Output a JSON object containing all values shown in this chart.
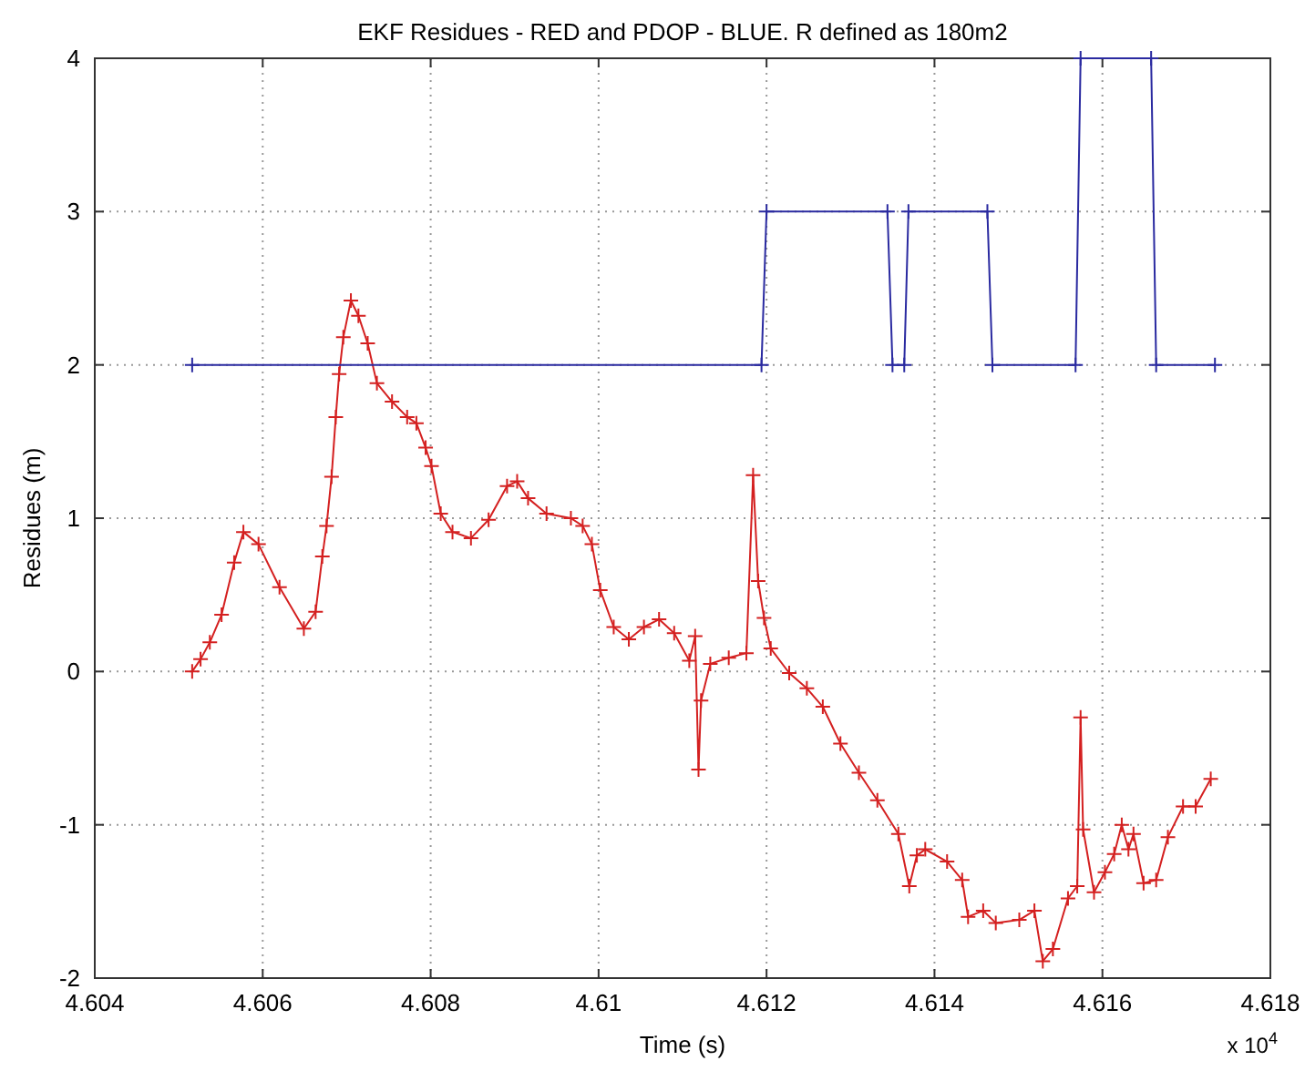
{
  "chart_data": {
    "type": "line",
    "title": "EKF Residues - RED and PDOP - BLUE. R defined as 180m2",
    "xlabel": "Time (s)",
    "ylabel": "Residues (m)",
    "annotations": [
      "x 10$^{4}$"
    ],
    "xlim": [
      4.604,
      4.618
    ],
    "xticks": [
      4.604,
      4.606,
      4.608,
      4.61,
      4.612,
      4.614,
      4.616,
      4.618
    ],
    "ylim": [
      -2,
      4
    ],
    "yticks": [
      -2,
      -1,
      0,
      1,
      2,
      3,
      4
    ],
    "grid": true,
    "marker": "cross",
    "line_style": "solid",
    "series": [
      {
        "color": "#d42020",
        "x": [
          4.60516,
          4.60526,
          4.60537,
          4.60551,
          4.60566,
          4.60577,
          4.60595,
          4.6062,
          4.60649,
          4.60663,
          4.60671,
          4.60676,
          4.60682,
          4.60687,
          4.60691,
          4.60696,
          4.60705,
          4.60714,
          4.60725,
          4.60736,
          4.60754,
          4.60772,
          4.60783,
          4.60794,
          4.60801,
          4.60812,
          4.60826,
          4.60848,
          4.60869,
          4.60891,
          4.60903,
          4.60916,
          4.60938,
          4.60967,
          4.60981,
          4.60992,
          4.61002,
          4.61018,
          4.61036,
          4.61054,
          4.61072,
          4.6109,
          4.61108,
          4.61115,
          4.61119,
          4.61122,
          4.61133,
          4.61155,
          4.61176,
          4.61184,
          4.6119,
          4.61197,
          4.61205,
          4.61227,
          4.61248,
          4.61267,
          4.61288,
          4.6131,
          4.61332,
          4.61357,
          4.6137,
          4.61379,
          4.61389,
          4.61415,
          4.61433,
          4.6144,
          4.61458,
          4.61473,
          4.61501,
          4.61519,
          4.61529,
          4.61541,
          4.61559,
          4.6157,
          4.61574,
          4.61577,
          4.6159,
          4.61603,
          4.61614,
          4.61623,
          4.61631,
          4.61637,
          4.61649,
          4.61664,
          4.61678,
          4.61696,
          4.61711,
          4.61729
        ],
        "values": [
          0.0,
          0.08,
          0.19,
          0.37,
          0.71,
          0.91,
          0.83,
          0.55,
          0.28,
          0.39,
          0.75,
          0.95,
          1.27,
          1.66,
          1.94,
          2.18,
          2.42,
          2.32,
          2.14,
          1.88,
          1.76,
          1.66,
          1.62,
          1.46,
          1.34,
          1.03,
          0.91,
          0.87,
          0.99,
          1.21,
          1.24,
          1.13,
          1.03,
          1.0,
          0.95,
          0.83,
          0.53,
          0.29,
          0.21,
          0.29,
          0.34,
          0.25,
          0.07,
          0.23,
          -0.64,
          -0.19,
          0.05,
          0.09,
          0.12,
          1.28,
          0.59,
          0.35,
          0.15,
          -0.01,
          -0.11,
          -0.23,
          -0.47,
          -0.66,
          -0.84,
          -1.06,
          -1.4,
          -1.2,
          -1.16,
          -1.24,
          -1.36,
          -1.6,
          -1.56,
          -1.64,
          -1.62,
          -1.56,
          -1.89,
          -1.81,
          -1.48,
          -1.4,
          -0.3,
          -1.03,
          -1.44,
          -1.31,
          -1.19,
          -1.0,
          -1.16,
          -1.06,
          -1.38,
          -1.36,
          -1.08,
          -0.88,
          -0.88,
          -0.7
        ]
      },
      {
        "color": "#2a2aa0",
        "x": [
          4.60516,
          4.61194,
          4.612,
          4.61344,
          4.6135,
          4.61364,
          4.61369,
          4.61463,
          4.61469,
          4.61568,
          4.61574,
          4.61658,
          4.61664,
          4.61734
        ],
        "values": [
          2,
          2,
          3,
          3,
          2,
          2,
          3,
          3,
          2,
          2,
          4,
          4,
          2,
          2
        ]
      }
    ]
  }
}
